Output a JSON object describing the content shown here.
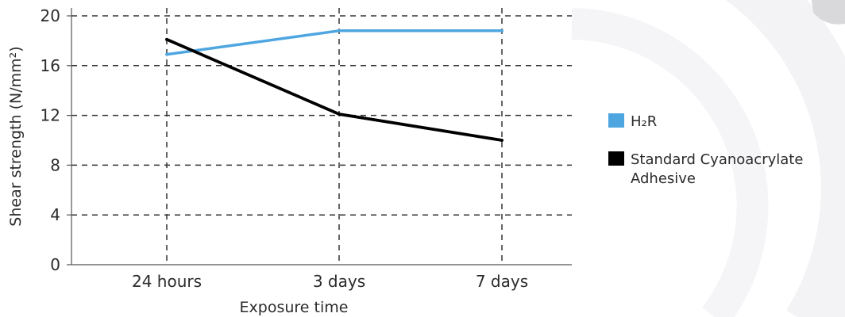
{
  "chart_data": {
    "type": "line",
    "title": "",
    "xlabel": "Exposure time",
    "ylabel": "Shear strength (N/mm²)",
    "categories": [
      "24 hours",
      "3 days",
      "7 days"
    ],
    "yticks": [
      0,
      4,
      8,
      12,
      16,
      20
    ],
    "ylim": [
      0,
      20
    ],
    "grid": true,
    "legend_position": "right",
    "series": [
      {
        "name": "H₂R",
        "color": "#4da6e0",
        "values": [
          16.9,
          18.8,
          18.8
        ]
      },
      {
        "name": "Standard Cyanoacrylate Adhesive",
        "name_lines": [
          "Standard Cyanoacrylate",
          "Adhesive"
        ],
        "color": "#000000",
        "values": [
          18.1,
          12.1,
          10.0
        ]
      }
    ]
  }
}
